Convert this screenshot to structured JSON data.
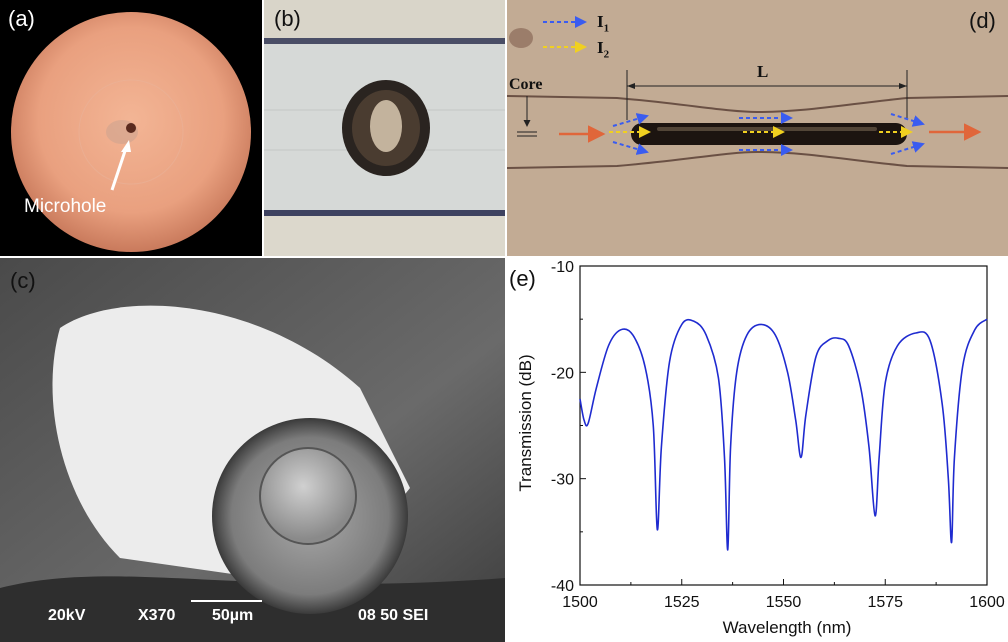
{
  "panels": {
    "a": {
      "label": "(a)",
      "annotation": "Microhole"
    },
    "b": {
      "label": "(b)"
    },
    "c": {
      "label": "(c)",
      "sem_bar": {
        "voltage": "20kV",
        "magnification": "X370",
        "scale": "50µm",
        "info": "08 50 SEI"
      }
    },
    "d": {
      "label": "(d)",
      "legend": {
        "i1": "I",
        "i1_sub": "1",
        "i2": "I",
        "i2_sub": "2"
      },
      "core_label": "Core",
      "length_label": "L"
    },
    "e": {
      "label": "(e)"
    }
  },
  "colors": {
    "curve": "#1f2bd0",
    "beam_in": "#e0663a",
    "arrow_i1": "#3a5cf0",
    "arrow_i2": "#f0d020"
  },
  "chart_data": {
    "type": "line",
    "xlabel": "Wavelength (nm)",
    "ylabel": "Transmission (dB)",
    "xlim": [
      1500,
      1600
    ],
    "ylim": [
      -40,
      -10
    ],
    "xticks": [
      1500,
      1525,
      1550,
      1575,
      1600
    ],
    "yticks": [
      -10,
      -20,
      -30,
      -40
    ],
    "series": [
      {
        "x": [
          1500,
          1501,
          1502,
          1504,
          1507,
          1510,
          1513,
          1516,
          1518,
          1519,
          1520,
          1522,
          1525,
          1528,
          1531,
          1534,
          1535.5,
          1536.3,
          1537,
          1538.5,
          1541,
          1544.5,
          1548,
          1551,
          1553,
          1554.3,
          1555.5,
          1558,
          1561,
          1563.5,
          1566,
          1569,
          1571,
          1572.5,
          1573.5,
          1575,
          1578,
          1582.5,
          1586,
          1589,
          1590.5,
          1591.3,
          1592,
          1594,
          1597,
          1600
        ],
        "y": [
          -22.5,
          -24.5,
          -24.8,
          -21.5,
          -17.5,
          -16,
          -16.5,
          -19.5,
          -25,
          -34.8,
          -27,
          -19,
          -15.5,
          -15.2,
          -16.5,
          -20.5,
          -28,
          -36.7,
          -27,
          -20,
          -16.5,
          -15.5,
          -16.5,
          -20,
          -24.5,
          -28,
          -24,
          -18.5,
          -17,
          -16.8,
          -17.5,
          -21.5,
          -27,
          -33.5,
          -28,
          -21,
          -17.5,
          -16.3,
          -17,
          -23,
          -30,
          -36,
          -28,
          -19.5,
          -16,
          -15
        ]
      }
    ]
  }
}
